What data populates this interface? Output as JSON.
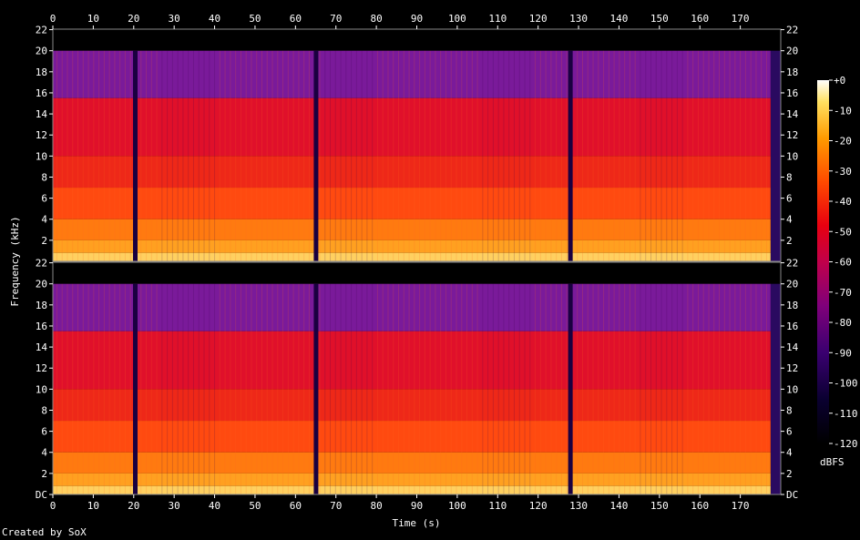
{
  "chart_data": {
    "type": "heatmap",
    "title": "",
    "xlabel": "Time (s)",
    "ylabel": "Frequency (kHz)",
    "x_ticks": [
      "0",
      "10",
      "20",
      "30",
      "40",
      "50",
      "60",
      "70",
      "80",
      "90",
      "100",
      "110",
      "120",
      "130",
      "140",
      "150",
      "160",
      "170"
    ],
    "xlim": [
      0,
      180
    ],
    "channels": [
      {
        "y_ticks": [
          "22",
          "20",
          "18",
          "16",
          "14",
          "12",
          "10",
          "8",
          "6",
          "4",
          "2"
        ]
      },
      {
        "y_ticks": [
          "22",
          "20",
          "18",
          "16",
          "14",
          "12",
          "10",
          "8",
          "6",
          "4",
          "2",
          "DC"
        ]
      }
    ],
    "ylim_khz": [
      0,
      22.05
    ],
    "colorbar": {
      "label": "dBFS",
      "ticks": [
        "+0",
        "-10",
        "-20",
        "-30",
        "-40",
        "-50",
        "-60",
        "-70",
        "-80",
        "-90",
        "-100",
        "-110",
        "-120"
      ],
      "range_db": [
        -120,
        0
      ]
    },
    "silent_gaps_s": [
      20.5,
      65.2,
      128.1
    ],
    "lowpass_khz": 20,
    "shelf_khz": 15.5,
    "duration_s": 177.5
  },
  "footer": {
    "credit": "Created by SoX"
  }
}
